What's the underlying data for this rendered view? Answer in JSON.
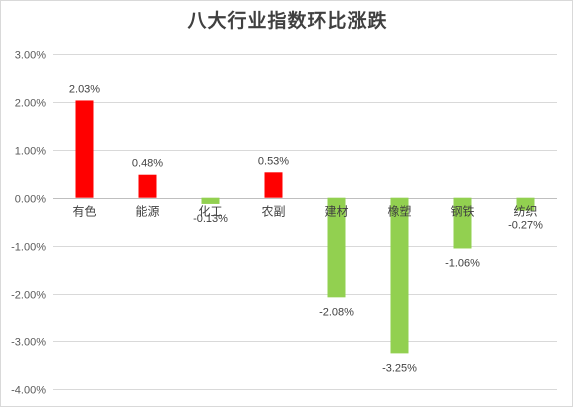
{
  "chart_data": {
    "type": "bar",
    "title": "八大行业指数环比涨跌",
    "categories": [
      "有色",
      "能源",
      "化工",
      "农副",
      "建材",
      "橡塑",
      "钢铁",
      "纺织"
    ],
    "values": [
      2.03,
      0.48,
      -0.13,
      0.53,
      -2.08,
      -3.25,
      -1.06,
      -0.27
    ],
    "value_labels": [
      "2.03%",
      "0.48%",
      "-0.13%",
      "0.53%",
      "-2.08%",
      "-3.25%",
      "-1.06%",
      "-0.27%"
    ],
    "ylim": [
      -4,
      3
    ],
    "yticks": [
      3,
      2,
      1,
      0,
      -1,
      -2,
      -3,
      -4
    ],
    "ytick_labels": [
      "3.00%",
      "2.00%",
      "1.00%",
      "0.00%",
      "-1.00%",
      "-2.00%",
      "-3.00%",
      "-4.00%"
    ],
    "xlabel": "",
    "ylabel": "",
    "grid": true,
    "legend": "none",
    "colors": {
      "positive": "#ff0000",
      "negative": "#92d050",
      "grid": "#d9d9d9",
      "axis": "#bfbfbf"
    }
  }
}
